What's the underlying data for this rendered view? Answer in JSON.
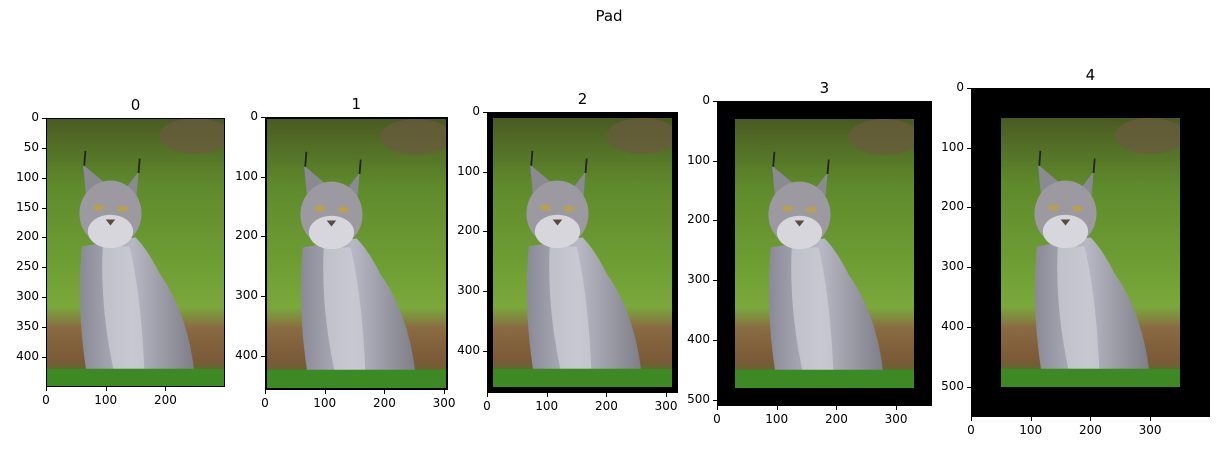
{
  "figure": {
    "suptitle": "Pad"
  },
  "chart_data": {
    "type": "image",
    "title": "Pad",
    "source_image": {
      "width": 300,
      "height": 451
    },
    "pad_color": "#000000",
    "panels": [
      {
        "title": "0",
        "pad": 0,
        "width": 300,
        "height": 451,
        "xticks": [
          0,
          100,
          200
        ],
        "yticks": [
          0,
          50,
          100,
          150,
          200,
          250,
          300,
          350,
          400
        ]
      },
      {
        "title": "1",
        "pad": 3,
        "width": 306,
        "height": 457,
        "xticks": [
          0,
          100,
          200,
          300
        ],
        "yticks": [
          0,
          100,
          200,
          300,
          400
        ]
      },
      {
        "title": "2",
        "pad": 10,
        "width": 320,
        "height": 471,
        "xticks": [
          0,
          100,
          200,
          300
        ],
        "yticks": [
          0,
          100,
          200,
          300,
          400
        ]
      },
      {
        "title": "3",
        "pad": 30,
        "width": 360,
        "height": 511,
        "xticks": [
          0,
          100,
          200,
          300
        ],
        "yticks": [
          0,
          100,
          200,
          300,
          400,
          500
        ]
      },
      {
        "title": "4",
        "pad": 50,
        "width": 400,
        "height": 551,
        "xticks": [
          0,
          100,
          200,
          300
        ],
        "yticks": [
          0,
          100,
          200,
          300,
          400,
          500
        ]
      }
    ]
  }
}
